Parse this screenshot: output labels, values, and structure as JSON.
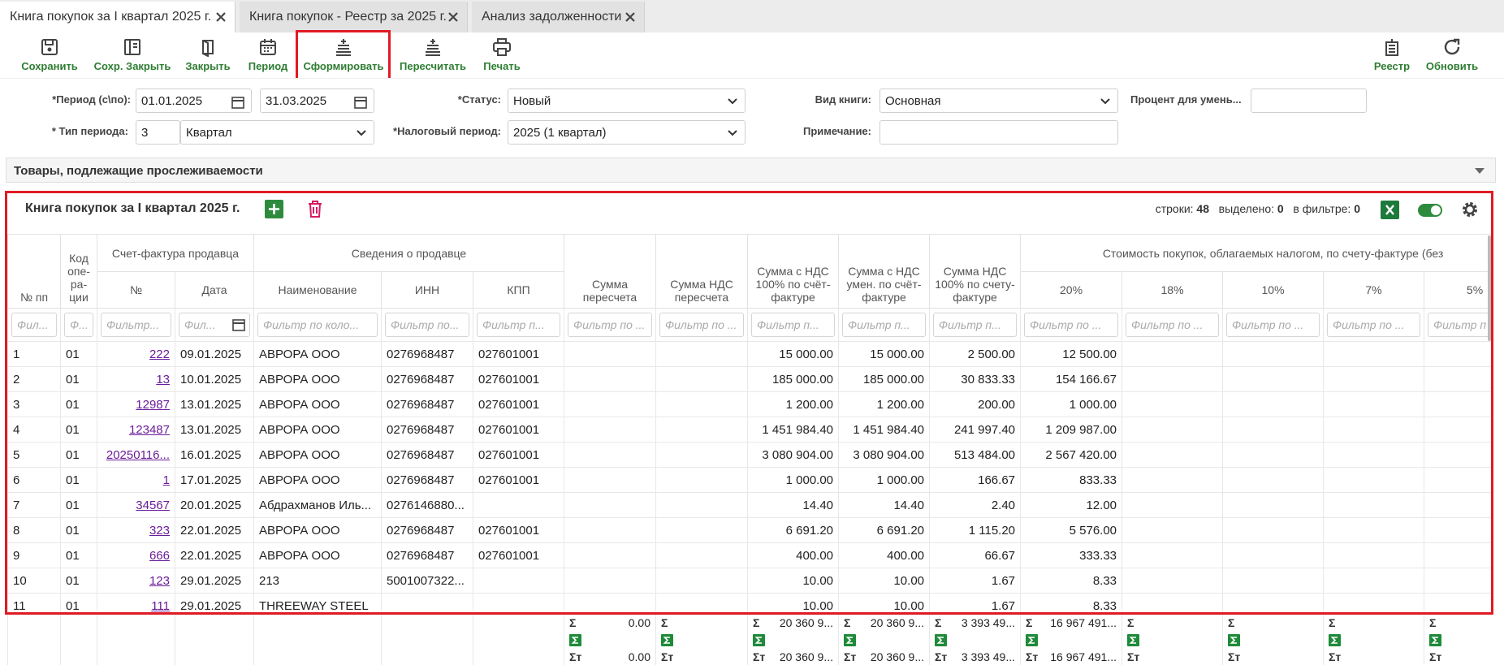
{
  "tabs": [
    "Книга покупок за I квартал 2025 г.",
    "Книга покупок - Реестр за 2025 г.",
    "Анализ задолженности"
  ],
  "toolbar": {
    "left": [
      "Сохранить",
      "Сохр. Закрыть",
      "Закрыть",
      "Период",
      "Сформировать",
      "Пересчитать",
      "Печать"
    ],
    "right": [
      "Реестр",
      "Обновить"
    ]
  },
  "form": {
    "period_label": "*Период (с\\по):",
    "period_from": "01.01.2025",
    "period_to": "31.03.2025",
    "period_type_label": "* Тип периода:",
    "period_type_code": "3",
    "period_type": "Квартал",
    "status_label": "*Статус:",
    "status": "Новый",
    "tax_period_label": "*Налоговый период:",
    "tax_period": "2025 (1 квартал)",
    "book_type_label": "Вид книги:",
    "book_type": "Основная",
    "percent_label": "Процент для умень...",
    "note_label": "Примечание:"
  },
  "section": "Товары, подлежащие прослеживаемости",
  "grid": {
    "title": "Книга покупок за I квартал 2025 г.",
    "stats": {
      "rows_label": "строки:",
      "rows": 48,
      "selected_label": "выделено:",
      "selected": 0,
      "filtered_label": "в фильтре:",
      "filtered": 0
    },
    "header_groups": {
      "invoice": "Счет-фактура продавца",
      "seller": "Сведения о продавце",
      "cost": "Стоимость покупок, облагаемых налогом, по счету-фактуре (без"
    },
    "columns": [
      "№ пп",
      "Код опе-ра-ции",
      "№",
      "Дата",
      "Наименование",
      "ИНН",
      "КПП",
      "Сумма пересчета",
      "Сумма НДС пересчета",
      "Сумма с НДС 100% по счёт-фактуре",
      "Сумма с НДС умен. по счёт-фактуре",
      "Сумма НДС 100% по счету-фактуре",
      "20%",
      "18%",
      "10%",
      "7%",
      "5%"
    ],
    "filters": [
      "Фил...",
      "Ф...",
      "Фильтр...",
      "Фил...",
      "Фильтр по коло...",
      "Фильтр по...",
      "Фильтр п...",
      "Фильтр по ...",
      "Фильтр по ...",
      "Фильтр п...",
      "Фильтр п...",
      "Фильтр п...",
      "Фильтр по ...",
      "Фильтр по ...",
      "Фильтр по ...",
      "Фильтр по ...",
      "Фильтр п"
    ],
    "rows": [
      [
        "1",
        "01",
        "222",
        "09.01.2025",
        "АВРОРА ООО",
        "0276968487",
        "027601001",
        null,
        null,
        "15 000.00",
        "15 000.00",
        "2 500.00",
        "12 500.00",
        null,
        null,
        null,
        null
      ],
      [
        "2",
        "01",
        "13",
        "10.01.2025",
        "АВРОРА ООО",
        "0276968487",
        "027601001",
        null,
        null,
        "185 000.00",
        "185 000.00",
        "30 833.33",
        "154 166.67",
        null,
        null,
        null,
        null
      ],
      [
        "3",
        "01",
        "12987",
        "13.01.2025",
        "АВРОРА ООО",
        "0276968487",
        "027601001",
        null,
        null,
        "1 200.00",
        "1 200.00",
        "200.00",
        "1 000.00",
        null,
        null,
        null,
        null
      ],
      [
        "4",
        "01",
        "123487",
        "13.01.2025",
        "АВРОРА ООО",
        "0276968487",
        "027601001",
        null,
        null,
        "1 451 984.40",
        "1 451 984.40",
        "241 997.40",
        "1 209 987.00",
        null,
        null,
        null,
        null
      ],
      [
        "5",
        "01",
        "20250116...",
        "16.01.2025",
        "АВРОРА ООО",
        "0276968487",
        "027601001",
        null,
        null,
        "3 080 904.00",
        "3 080 904.00",
        "513 484.00",
        "2 567 420.00",
        null,
        null,
        null,
        null
      ],
      [
        "6",
        "01",
        "1",
        "17.01.2025",
        "АВРОРА ООО",
        "0276968487",
        "027601001",
        null,
        null,
        "1 000.00",
        "1 000.00",
        "166.67",
        "833.33",
        null,
        null,
        null,
        null
      ],
      [
        "7",
        "01",
        "34567",
        "20.01.2025",
        "Абдрахманов Иль...",
        "0276146880...",
        null,
        null,
        null,
        "14.40",
        "14.40",
        "2.40",
        "12.00",
        null,
        null,
        null,
        null
      ],
      [
        "8",
        "01",
        "323",
        "22.01.2025",
        "АВРОРА ООО",
        "0276968487",
        "027601001",
        null,
        null,
        "6 691.20",
        "6 691.20",
        "1 115.20",
        "5 576.00",
        null,
        null,
        null,
        null
      ],
      [
        "9",
        "01",
        "666",
        "22.01.2025",
        "АВРОРА ООО",
        "0276968487",
        "027601001",
        null,
        null,
        "400.00",
        "400.00",
        "66.67",
        "333.33",
        null,
        null,
        null,
        null
      ],
      [
        "10",
        "01",
        "123",
        "29.01.2025",
        "213",
        "5001007322...",
        null,
        null,
        null,
        "10.00",
        "10.00",
        "1.67",
        "8.33",
        null,
        null,
        null,
        null
      ],
      [
        "11",
        "01",
        "111",
        "29.01.2025",
        "THREEWAY STEEL",
        null,
        null,
        null,
        null,
        "10.00",
        "10.00",
        "1.67",
        "8.33",
        null,
        null,
        null,
        null
      ]
    ],
    "totals": {
      "sum_label": "Σ",
      "filtered_label": "Σт",
      "columns": [
        null,
        null,
        null,
        null,
        null,
        null,
        null,
        {
          "sum": "0.00",
          "filtered": "0.00"
        },
        {
          "sum": null,
          "filtered": null
        },
        {
          "sum": "20 360 9...",
          "filtered": "20 360 9..."
        },
        {
          "sum": "20 360 9...",
          "filtered": "20 360 9..."
        },
        {
          "sum": "3 393 49...",
          "filtered": "3 393 49..."
        },
        {
          "sum": "16 967 491...",
          "filtered": "16 967 491..."
        },
        {
          "sum": null,
          "filtered": null
        },
        {
          "sum": null,
          "filtered": null
        },
        {
          "sum": null,
          "filtered": null
        },
        {
          "sum": null,
          "filtered": null
        }
      ]
    }
  }
}
